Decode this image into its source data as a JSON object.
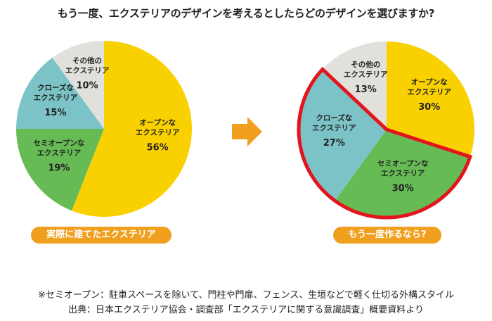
{
  "title": "もう一度、エクステリアのデザインを考えるとしたらどのデザインを選びますか?",
  "colors": {
    "open": "#f9d100",
    "semi": "#66bb55",
    "closed": "#7cc3c8",
    "other": "#e2e0db",
    "highlight": "#e3141b",
    "arrow": "#f0a01e",
    "pill": "#f0a01e"
  },
  "chart_data": [
    {
      "type": "pie",
      "caption": "実際に建てたエクステリア",
      "slices": [
        {
          "key": "open",
          "label": [
            "オープンな",
            "エクステリア"
          ],
          "value": 56,
          "value_label": "56%"
        },
        {
          "key": "semi",
          "label": [
            "セミオープンな",
            "エクステリア"
          ],
          "value": 19,
          "value_label": "19%"
        },
        {
          "key": "closed",
          "label": [
            "クローズな",
            "エクステリア"
          ],
          "value": 15,
          "value_label": "15%"
        },
        {
          "key": "other",
          "label": [
            "その他の",
            "エクステリア"
          ],
          "value": 10,
          "value_label": "10%"
        }
      ]
    },
    {
      "type": "pie",
      "caption": "もう一度作るなら?",
      "highlighted": [
        "semi",
        "closed"
      ],
      "slices": [
        {
          "key": "open",
          "label": [
            "オープンな",
            "エクステリア"
          ],
          "value": 30,
          "value_label": "30%"
        },
        {
          "key": "semi",
          "label": [
            "セミオープンな",
            "エクステリア"
          ],
          "value": 30,
          "value_label": "30%"
        },
        {
          "key": "closed",
          "label": [
            "クローズな",
            "エクステリア"
          ],
          "value": 27,
          "value_label": "27%"
        },
        {
          "key": "other",
          "label": [
            "その他の",
            "エクステリア"
          ],
          "value": 13,
          "value_label": "13%"
        }
      ]
    }
  ],
  "footnotes": {
    "definition": "※セミオープン：駐車スペースを除いて、門柱や門扉、フェンス、生垣などで軽く仕切る外構スタイル",
    "source": "出典：日本エクステリア協会・調査部「エクステリアに関する意識調査」概要資料より"
  }
}
